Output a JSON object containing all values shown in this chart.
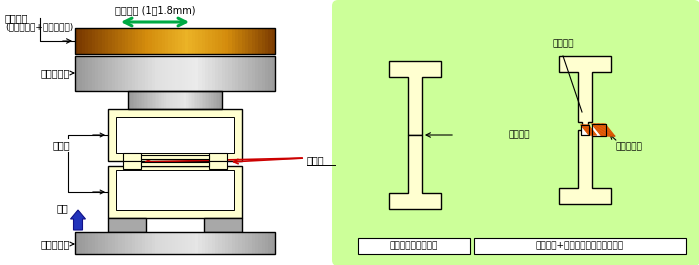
{
  "bg_color": "#ffffff",
  "green_box_color": "#ccff99",
  "cream_color": "#ffffd0",
  "gray_dark": "#707070",
  "gray_light": "#d0d0d0",
  "gray_mid": "#a8a8a8",
  "orange_dark": "#7a3c00",
  "orange_mid": "#c87800",
  "orange_light": "#e8a820",
  "text_color": "#000000",
  "arrow_green": "#00aa44",
  "arrow_blue": "#2233bb",
  "arrow_red": "#cc0000",
  "label_vibration": "振動方向 (1～1.8mm)",
  "label_kasin_line1": "加振装置",
  "label_kasin_line2": "(電磁コイル+スプリング)",
  "label_upper": "上固定金型",
  "label_seikeihin": "成形品",
  "label_setsugobu": "接合部",
  "label_kaatsu": "加圧",
  "label_lower": "下固定金型",
  "label_ippan": "一般的なジョイント",
  "label_yochaku": "溶着リブ+バリ溜まり付ジョイント",
  "label_yochaku_rib": "溶着リブ",
  "label_setsugo_kaimen": "接合界面",
  "label_bari": "バリ溜まり"
}
